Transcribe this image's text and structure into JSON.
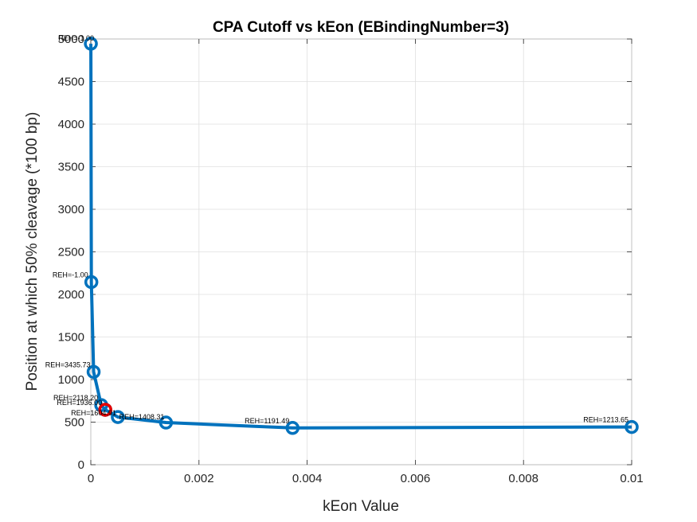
{
  "chart_data": {
    "type": "line",
    "title": "CPA Cutoff vs kEon (EBindingNumber=3)",
    "xlabel": "kEon Value",
    "ylabel": "Position at which 50% cleavage (*100 bp)",
    "xlim": [
      0,
      0.01
    ],
    "ylim": [
      0,
      5000
    ],
    "xticks": [
      0,
      0.002,
      0.004,
      0.006,
      0.008,
      0.01
    ],
    "xtick_labels": [
      "0",
      "0.002",
      "0.004",
      "0.006",
      "0.008",
      "0.01"
    ],
    "yticks": [
      0,
      500,
      1000,
      1500,
      2000,
      2500,
      3000,
      3500,
      4000,
      4500,
      5000
    ],
    "ytick_labels": [
      "0",
      "500",
      "1000",
      "1500",
      "2000",
      "2500",
      "3000",
      "3500",
      "4000",
      "4500",
      "5000"
    ],
    "grid": true,
    "line_color": "#0072BD",
    "highlight_color": "#E60000",
    "points": [
      {
        "x": 1e-06,
        "y": 4945,
        "label": "REH=-1.00"
      },
      {
        "x": 1e-05,
        "y": 2145,
        "label": "REH=-1.00"
      },
      {
        "x": 5.2e-05,
        "y": 1090,
        "label": "REH=3435.73"
      },
      {
        "x": 0.000193,
        "y": 700,
        "label": "REH=2118.20"
      },
      {
        "x": 0.000268,
        "y": 645,
        "label": "REH=1936.00",
        "highlight": true
      },
      {
        "x": 0.0005,
        "y": 560,
        "label": "REH=1604.91"
      },
      {
        "x": 0.00139,
        "y": 495,
        "label": "REH=1408.31"
      },
      {
        "x": 0.00373,
        "y": 432,
        "label": "REH=1191.49"
      },
      {
        "x": 0.01,
        "y": 443,
        "label": "REH=1213.65"
      }
    ]
  }
}
